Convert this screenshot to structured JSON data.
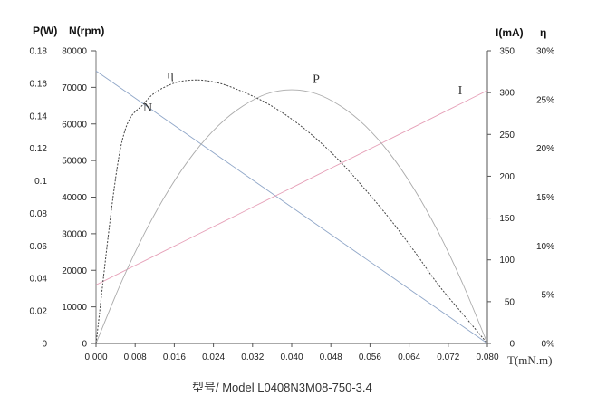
{
  "chart_data": {
    "type": "line",
    "x": [
      0,
      0.005,
      0.01,
      0.015,
      0.02,
      0.025,
      0.03,
      0.035,
      0.04,
      0.045,
      0.05,
      0.055,
      0.06,
      0.065,
      0.07,
      0.075,
      0.08
    ],
    "x_ticks": [
      "0.000",
      "0.008",
      "0.016",
      "0.024",
      "0.032",
      "0.040",
      "0.048",
      "0.056",
      "0.064",
      "0.072",
      "0.080"
    ],
    "xlim": [
      0,
      0.08
    ],
    "xlabel": "T(mN.m)",
    "axes": {
      "p_title": "P(W)",
      "n_title": "N(rpm)",
      "i_title": "I(mA)",
      "eta_title": "η",
      "p_ticks": [
        "0",
        "0.02",
        "0.04",
        "0.06",
        "0.08",
        "0.1",
        "0.12",
        "0.14",
        "0.16",
        "0.18"
      ],
      "n_ticks": [
        "0",
        "10000",
        "20000",
        "30000",
        "40000",
        "50000",
        "60000",
        "70000",
        "80000"
      ],
      "i_ticks": [
        "0",
        "50",
        "100",
        "150",
        "200",
        "250",
        "300",
        "350"
      ],
      "eta_ticks": [
        "0%",
        "5%",
        "10%",
        "15%",
        "20%",
        "25%",
        "30%"
      ],
      "p_range": [
        0,
        0.18
      ],
      "n_range": [
        0,
        80000
      ],
      "i_range": [
        0,
        350
      ],
      "eta_range": [
        0,
        0.3
      ]
    },
    "series": [
      {
        "name": "N",
        "axis": "n",
        "color": "#8fa6c8",
        "dash": false,
        "values": [
          74500,
          69844,
          65188,
          60531,
          55875,
          51219,
          46563,
          41906,
          37250,
          32594,
          27938,
          23281,
          18625,
          13969,
          9313,
          4656,
          0
        ]
      },
      {
        "name": "I",
        "axis": "i",
        "color": "#e6a0b8",
        "dash": false,
        "values": [
          70,
          84.6,
          99.1,
          113.6,
          128.1,
          142.6,
          157.1,
          171.7,
          186.2,
          200.8,
          215.3,
          229.8,
          244.3,
          258.8,
          273.4,
          288,
          302.5
        ]
      },
      {
        "name": "P",
        "axis": "p",
        "color": "#aaaaaa",
        "dash": false,
        "values": [
          0,
          0.0365,
          0.0683,
          0.0951,
          0.117,
          0.134,
          0.146,
          0.1536,
          0.156,
          0.1536,
          0.146,
          0.134,
          0.117,
          0.0951,
          0.0683,
          0.0365,
          0
        ]
      },
      {
        "name": "η",
        "axis": "eta",
        "color": "#444444",
        "dash": true,
        "values": [
          0,
          0.2,
          0.247,
          0.265,
          0.27,
          0.267,
          0.258,
          0.246,
          0.23,
          0.21,
          0.186,
          0.158,
          0.128,
          0.095,
          0.06,
          0.03,
          0
        ]
      }
    ],
    "caption": "型号/ Model   L0408N3M08-750-3.4"
  }
}
